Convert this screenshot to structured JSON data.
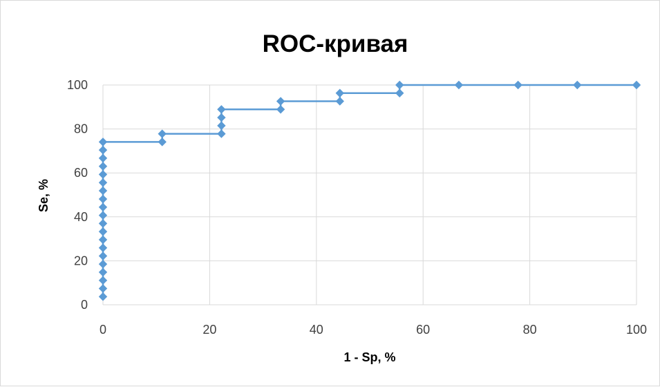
{
  "chart_data": {
    "type": "line",
    "title": "ROC-кривая",
    "xlabel": "1 - Sp, %",
    "ylabel": "Se, %",
    "xlim": [
      0,
      100
    ],
    "ylim": [
      0,
      100
    ],
    "xticks": [
      0,
      20,
      40,
      60,
      80,
      100
    ],
    "yticks": [
      0,
      20,
      40,
      60,
      80,
      100
    ],
    "grid": true,
    "legend": "none",
    "line_style": "step",
    "series": [
      {
        "color": "#5b9bd5",
        "marker": "diamond",
        "x": [
          0,
          0,
          0,
          0,
          0,
          0,
          0,
          0,
          0,
          0,
          0,
          0,
          0,
          0,
          0,
          0,
          0,
          0,
          0,
          0,
          11.1,
          11.1,
          22.2,
          22.2,
          22.2,
          22.2,
          33.3,
          33.3,
          44.4,
          44.4,
          55.6,
          55.6,
          66.7,
          77.8,
          88.9,
          100
        ],
        "y": [
          3.7,
          7.4,
          11.1,
          14.8,
          18.5,
          22.2,
          25.9,
          29.6,
          33.3,
          37.0,
          40.7,
          44.4,
          48.1,
          51.9,
          55.6,
          59.3,
          63.0,
          66.7,
          70.4,
          74.1,
          74.1,
          77.8,
          77.8,
          81.5,
          85.2,
          88.9,
          88.9,
          92.6,
          92.6,
          96.3,
          96.3,
          100,
          100,
          100,
          100,
          100
        ]
      }
    ]
  }
}
